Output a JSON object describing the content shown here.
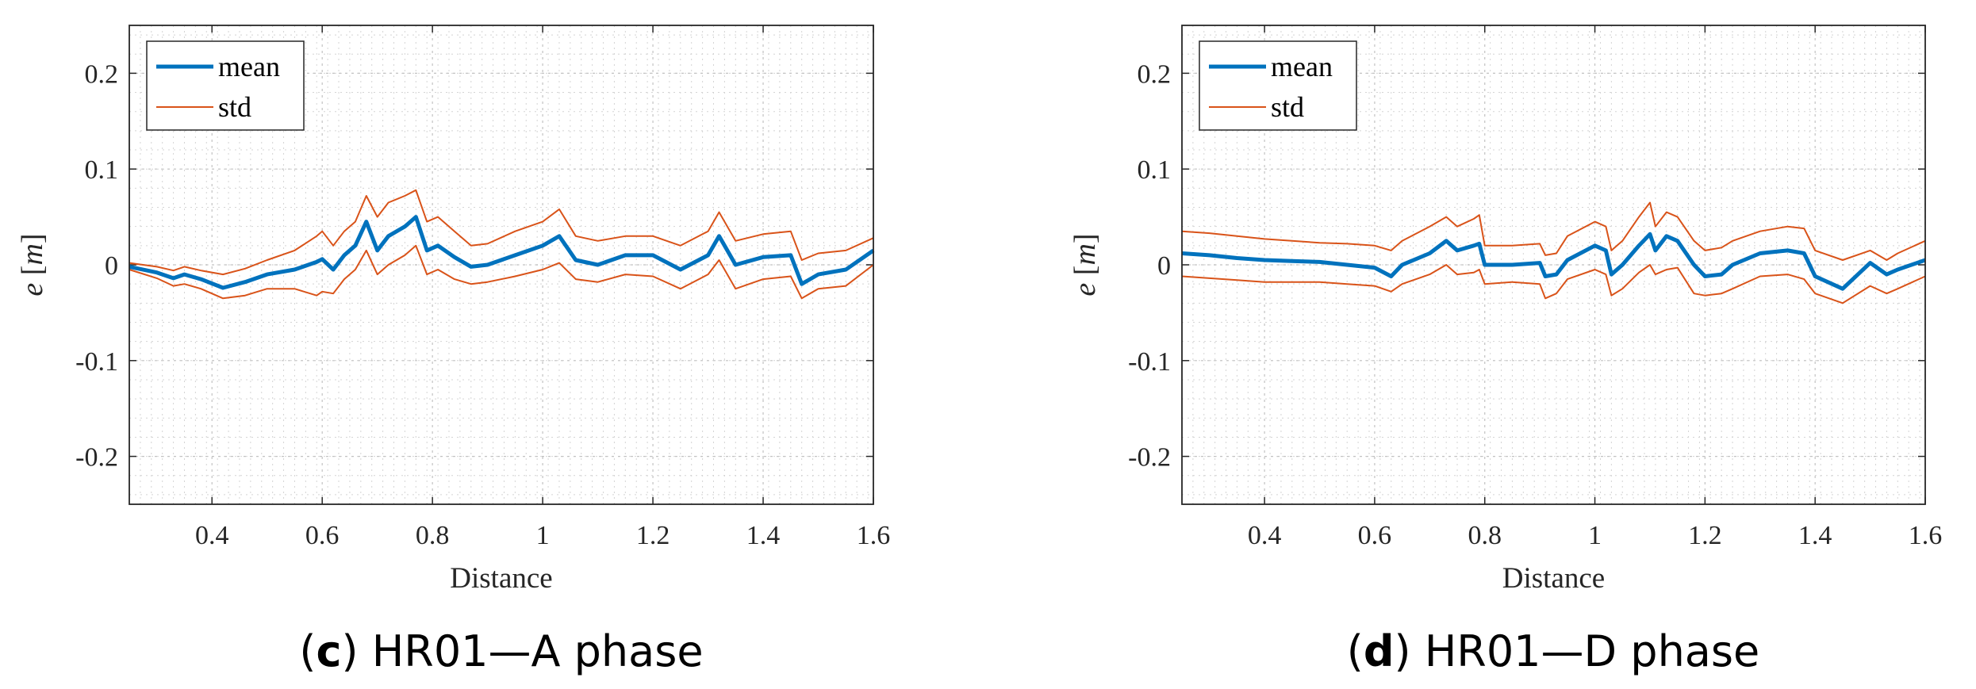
{
  "chart_data": [
    {
      "type": "line",
      "caption_letter": "c",
      "caption_text": "HR01—A phase",
      "xlabel": "Distance",
      "ylabel_var": "e",
      "ylabel_unit": "m",
      "xlim": [
        0.25,
        1.6
      ],
      "ylim": [
        -0.25,
        0.25
      ],
      "xticks": [
        0.4,
        0.6,
        0.8,
        1,
        1.2,
        1.4,
        1.6
      ],
      "xtick_labels": [
        "0.4",
        "0.6",
        "0.8",
        "1",
        "1.2",
        "1.4",
        "1.6"
      ],
      "yticks": [
        0.2,
        0.1,
        0,
        -0.1,
        -0.2
      ],
      "ytick_labels": [
        "0.2",
        "0.1",
        "0",
        "-0.1",
        "-0.2"
      ],
      "grid": true,
      "legend_position": "top-left",
      "legend": [
        "mean",
        "std"
      ],
      "colors": {
        "mean": "#0072bd",
        "std": "#d95319"
      },
      "series": [
        {
          "name": "mean",
          "x": [
            0.25,
            0.3,
            0.33,
            0.35,
            0.38,
            0.42,
            0.46,
            0.5,
            0.55,
            0.59,
            0.6,
            0.62,
            0.64,
            0.66,
            0.68,
            0.7,
            0.72,
            0.75,
            0.77,
            0.79,
            0.81,
            0.84,
            0.87,
            0.9,
            0.95,
            1.0,
            1.03,
            1.06,
            1.1,
            1.15,
            1.2,
            1.25,
            1.3,
            1.32,
            1.35,
            1.4,
            1.45,
            1.47,
            1.5,
            1.55,
            1.6
          ],
          "y": [
            -0.002,
            -0.008,
            -0.014,
            -0.01,
            -0.015,
            -0.024,
            -0.018,
            -0.01,
            -0.005,
            0.003,
            0.006,
            -0.005,
            0.01,
            0.02,
            0.045,
            0.015,
            0.03,
            0.04,
            0.05,
            0.015,
            0.02,
            0.008,
            -0.002,
            0.0,
            0.01,
            0.02,
            0.03,
            0.005,
            0.0,
            0.01,
            0.01,
            -0.005,
            0.01,
            0.03,
            0.0,
            0.008,
            0.01,
            -0.02,
            -0.01,
            -0.005,
            0.015
          ]
        },
        {
          "name": "std upper",
          "x": [
            0.25,
            0.3,
            0.33,
            0.35,
            0.38,
            0.42,
            0.46,
            0.5,
            0.55,
            0.59,
            0.6,
            0.62,
            0.64,
            0.66,
            0.68,
            0.7,
            0.72,
            0.75,
            0.77,
            0.79,
            0.81,
            0.84,
            0.87,
            0.9,
            0.95,
            1.0,
            1.03,
            1.06,
            1.1,
            1.15,
            1.2,
            1.25,
            1.3,
            1.32,
            1.35,
            1.4,
            1.45,
            1.47,
            1.5,
            1.55,
            1.6
          ],
          "y": [
            0.002,
            -0.002,
            -0.006,
            -0.002,
            -0.006,
            -0.01,
            -0.004,
            0.005,
            0.015,
            0.03,
            0.035,
            0.02,
            0.035,
            0.045,
            0.072,
            0.05,
            0.065,
            0.072,
            0.078,
            0.045,
            0.05,
            0.035,
            0.02,
            0.022,
            0.035,
            0.045,
            0.058,
            0.03,
            0.025,
            0.03,
            0.03,
            0.02,
            0.035,
            0.055,
            0.025,
            0.032,
            0.035,
            0.005,
            0.012,
            0.015,
            0.028
          ]
        },
        {
          "name": "std lower",
          "x": [
            0.25,
            0.3,
            0.33,
            0.35,
            0.38,
            0.42,
            0.46,
            0.5,
            0.55,
            0.59,
            0.6,
            0.62,
            0.64,
            0.66,
            0.68,
            0.7,
            0.72,
            0.75,
            0.77,
            0.79,
            0.81,
            0.84,
            0.87,
            0.9,
            0.95,
            1.0,
            1.03,
            1.06,
            1.1,
            1.15,
            1.2,
            1.25,
            1.3,
            1.32,
            1.35,
            1.4,
            1.45,
            1.47,
            1.5,
            1.55,
            1.6
          ],
          "y": [
            -0.005,
            -0.014,
            -0.022,
            -0.02,
            -0.025,
            -0.035,
            -0.032,
            -0.025,
            -0.025,
            -0.032,
            -0.028,
            -0.03,
            -0.015,
            -0.005,
            0.015,
            -0.01,
            0.0,
            0.01,
            0.02,
            -0.01,
            -0.005,
            -0.015,
            -0.02,
            -0.018,
            -0.012,
            -0.005,
            0.002,
            -0.015,
            -0.018,
            -0.01,
            -0.012,
            -0.025,
            -0.01,
            0.005,
            -0.025,
            -0.015,
            -0.012,
            -0.035,
            -0.025,
            -0.022,
            0.0
          ]
        }
      ]
    },
    {
      "type": "line",
      "caption_letter": "d",
      "caption_text": "HR01—D phase",
      "xlabel": "Distance",
      "ylabel_var": "e",
      "ylabel_unit": "m",
      "xlim": [
        0.25,
        1.6
      ],
      "ylim": [
        -0.25,
        0.25
      ],
      "xticks": [
        0.4,
        0.6,
        0.8,
        1,
        1.2,
        1.4,
        1.6
      ],
      "xtick_labels": [
        "0.4",
        "0.6",
        "0.8",
        "1",
        "1.2",
        "1.4",
        "1.6"
      ],
      "yticks": [
        0.2,
        0.1,
        0,
        -0.1,
        -0.2
      ],
      "ytick_labels": [
        "0.2",
        "0.1",
        "0",
        "-0.1",
        "-0.2"
      ],
      "grid": true,
      "legend_position": "top-left",
      "legend": [
        "mean",
        "std"
      ],
      "colors": {
        "mean": "#0072bd",
        "std": "#d95319"
      },
      "series": [
        {
          "name": "mean",
          "x": [
            0.25,
            0.3,
            0.35,
            0.4,
            0.45,
            0.5,
            0.55,
            0.6,
            0.63,
            0.65,
            0.7,
            0.73,
            0.75,
            0.78,
            0.79,
            0.8,
            0.85,
            0.9,
            0.91,
            0.93,
            0.95,
            1.0,
            1.02,
            1.03,
            1.05,
            1.08,
            1.1,
            1.11,
            1.13,
            1.15,
            1.18,
            1.2,
            1.23,
            1.25,
            1.3,
            1.35,
            1.38,
            1.4,
            1.45,
            1.5,
            1.53,
            1.55,
            1.6
          ],
          "y": [
            0.012,
            0.01,
            0.007,
            0.005,
            0.004,
            0.003,
            0.0,
            -0.003,
            -0.012,
            0.0,
            0.012,
            0.025,
            0.015,
            0.02,
            0.022,
            0.0,
            0.0,
            0.002,
            -0.012,
            -0.01,
            0.005,
            0.02,
            0.015,
            -0.01,
            0.0,
            0.02,
            0.032,
            0.015,
            0.03,
            0.025,
            0.0,
            -0.012,
            -0.01,
            0.0,
            0.012,
            0.015,
            0.012,
            -0.012,
            -0.025,
            0.002,
            -0.01,
            -0.005,
            0.005
          ]
        },
        {
          "name": "std upper",
          "x": [
            0.25,
            0.3,
            0.35,
            0.4,
            0.45,
            0.5,
            0.55,
            0.6,
            0.63,
            0.65,
            0.7,
            0.73,
            0.75,
            0.78,
            0.79,
            0.8,
            0.85,
            0.9,
            0.91,
            0.93,
            0.95,
            1.0,
            1.02,
            1.03,
            1.05,
            1.08,
            1.1,
            1.11,
            1.13,
            1.15,
            1.18,
            1.2,
            1.23,
            1.25,
            1.3,
            1.35,
            1.38,
            1.4,
            1.45,
            1.5,
            1.53,
            1.55,
            1.6
          ],
          "y": [
            0.035,
            0.033,
            0.03,
            0.027,
            0.025,
            0.023,
            0.022,
            0.02,
            0.015,
            0.025,
            0.04,
            0.05,
            0.04,
            0.048,
            0.052,
            0.02,
            0.02,
            0.022,
            0.01,
            0.012,
            0.03,
            0.045,
            0.04,
            0.015,
            0.025,
            0.05,
            0.065,
            0.04,
            0.055,
            0.05,
            0.025,
            0.015,
            0.018,
            0.025,
            0.035,
            0.04,
            0.038,
            0.015,
            0.005,
            0.015,
            0.005,
            0.012,
            0.025
          ]
        },
        {
          "name": "std lower",
          "x": [
            0.25,
            0.3,
            0.35,
            0.4,
            0.45,
            0.5,
            0.55,
            0.6,
            0.63,
            0.65,
            0.7,
            0.73,
            0.75,
            0.78,
            0.79,
            0.8,
            0.85,
            0.9,
            0.91,
            0.93,
            0.95,
            1.0,
            1.02,
            1.03,
            1.05,
            1.08,
            1.1,
            1.11,
            1.13,
            1.15,
            1.18,
            1.2,
            1.23,
            1.25,
            1.3,
            1.35,
            1.38,
            1.4,
            1.45,
            1.5,
            1.53,
            1.55,
            1.6
          ],
          "y": [
            -0.012,
            -0.014,
            -0.016,
            -0.018,
            -0.018,
            -0.018,
            -0.02,
            -0.022,
            -0.028,
            -0.02,
            -0.01,
            0.0,
            -0.01,
            -0.008,
            -0.005,
            -0.02,
            -0.018,
            -0.02,
            -0.035,
            -0.03,
            -0.015,
            -0.005,
            -0.01,
            -0.032,
            -0.025,
            -0.008,
            0.0,
            -0.01,
            -0.005,
            -0.003,
            -0.03,
            -0.032,
            -0.03,
            -0.025,
            -0.012,
            -0.01,
            -0.015,
            -0.03,
            -0.04,
            -0.022,
            -0.03,
            -0.025,
            -0.012
          ]
        }
      ]
    }
  ]
}
